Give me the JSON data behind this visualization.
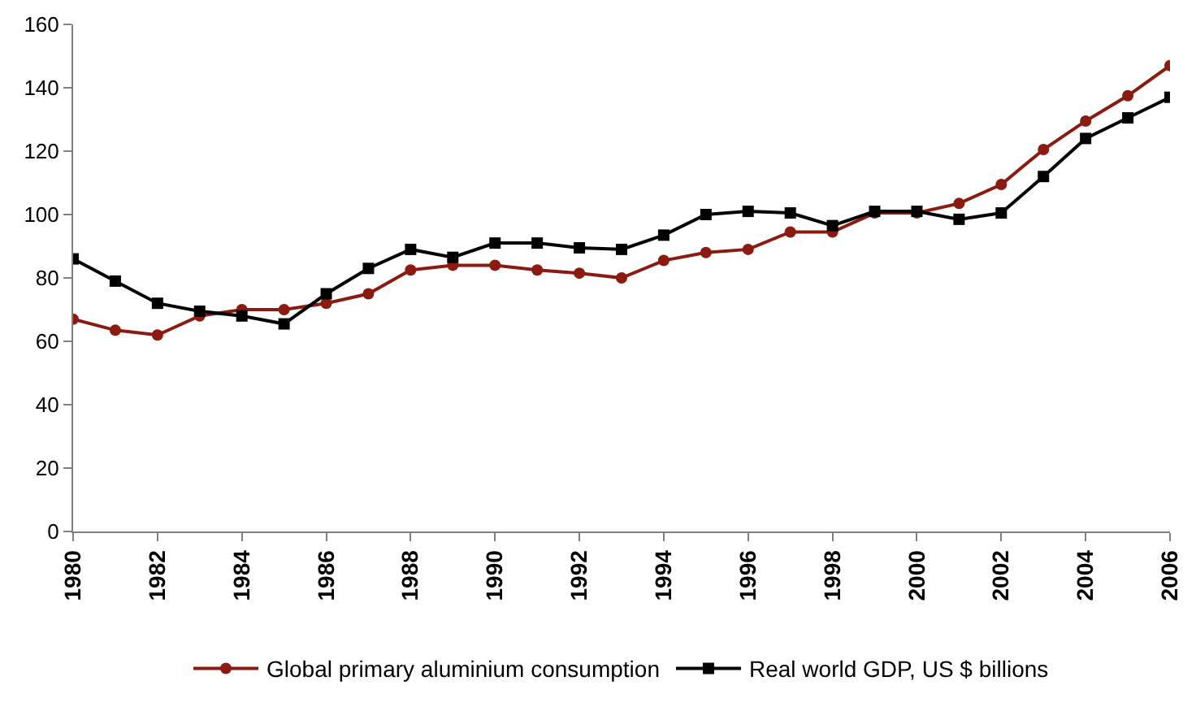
{
  "chart_data": {
    "type": "line",
    "x": [
      1980,
      1981,
      1982,
      1983,
      1984,
      1985,
      1986,
      1987,
      1988,
      1989,
      1990,
      1991,
      1992,
      1993,
      1994,
      1995,
      1996,
      1997,
      1998,
      1999,
      2000,
      2001,
      2002,
      2003,
      2004,
      2005,
      2006
    ],
    "series": [
      {
        "name": "Global primary aluminium consumption",
        "color": "#8b1a10",
        "marker": "circle",
        "values": [
          67,
          63.5,
          62,
          68,
          70,
          70,
          72,
          75,
          82.5,
          84,
          84,
          82.5,
          81.5,
          80,
          85.5,
          88,
          89,
          94.5,
          94.5,
          100.5,
          100.5,
          103.5,
          109.5,
          120.5,
          129.5,
          137.5,
          147
        ]
      },
      {
        "name": "Real world GDP, US $ billions",
        "color": "#000000",
        "marker": "square",
        "values": [
          86,
          79,
          72,
          69.5,
          68,
          65.5,
          75,
          83,
          89,
          86.5,
          91,
          91,
          89.5,
          89,
          93.5,
          100,
          101,
          100.5,
          96.5,
          101,
          101,
          98.5,
          100.5,
          112,
          124,
          130.5,
          137
        ]
      }
    ],
    "xlim": [
      1980,
      2006
    ],
    "xticks": [
      1980,
      1982,
      1984,
      1986,
      1988,
      1990,
      1992,
      1994,
      1996,
      1998,
      2000,
      2002,
      2004,
      2006
    ],
    "ylim": [
      0,
      160
    ],
    "yticks": [
      0,
      20,
      40,
      60,
      80,
      100,
      120,
      140,
      160
    ],
    "legend": "bottom",
    "line_style": "solid"
  }
}
